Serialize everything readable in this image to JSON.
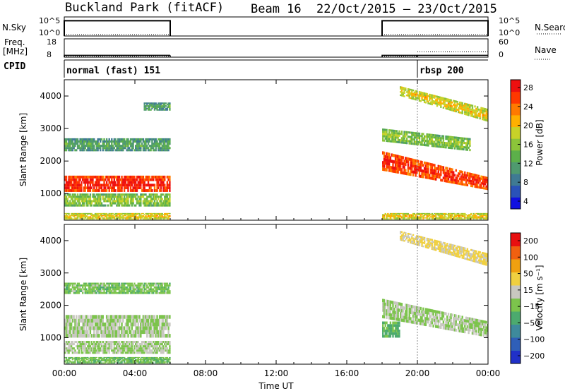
{
  "header": {
    "station": "Buckland Park (fitACF)",
    "beam": "Beam 16",
    "date_range": "22/Oct/2015 – 23/Oct/2015"
  },
  "chart_data": [
    {
      "type": "line",
      "panel": "noise",
      "left_label": "N.Sky",
      "right_label": "N.Search",
      "left_ticks": [
        "10^5",
        "10^0"
      ],
      "right_ticks": [
        "10^5",
        "10^0"
      ],
      "scale": "log",
      "segments": [
        {
          "start_h": 0.0,
          "end_h": 6.0,
          "n_sky_level": "10^4",
          "n_search_level": "10^0"
        },
        {
          "start_h": 18.0,
          "end_h": 24.0,
          "n_sky_level": "10^4",
          "n_search_level": "10^0"
        }
      ]
    },
    {
      "type": "line",
      "panel": "frequency",
      "left_label_lines": [
        "Freq.",
        "[MHz]"
      ],
      "right_label": "Nave",
      "left_ticks": [
        "18",
        "8"
      ],
      "right_ticks": [
        "60",
        "0"
      ],
      "segments": [
        {
          "start_h": 0.0,
          "end_h": 6.0,
          "freq_mhz": 9,
          "nave": 0
        },
        {
          "start_h": 18.0,
          "end_h": 20.0,
          "freq_mhz": 9,
          "nave": 0
        },
        {
          "start_h": 20.0,
          "end_h": 24.0,
          "freq_mhz": 9,
          "nave": 15
        }
      ]
    },
    {
      "type": "table",
      "panel": "cpid",
      "label": "CPID",
      "modes": [
        {
          "name": "normal (fast) 151",
          "start_h": 0.0
        },
        {
          "name": "rbsp 200",
          "start_h": 20.0
        }
      ]
    },
    {
      "type": "heatmap",
      "panel": "power",
      "ylabel": "Slant Range [km]",
      "xlabel": "",
      "ylim": [
        180,
        4500
      ],
      "yticks": [
        1000,
        2000,
        3000,
        4000
      ],
      "xlim_h": [
        0,
        24
      ],
      "colorbar": {
        "label": "Power [dB]",
        "range": [
          0,
          30
        ],
        "ticks": [
          "28",
          "24",
          "20",
          "16",
          "12",
          "8",
          "4"
        ],
        "colors": [
          "#1010e0",
          "#2a52b8",
          "#3f7a93",
          "#4f9a6f",
          "#5cb04a",
          "#8cc43a",
          "#c8d228",
          "#ffb000",
          "#ff7a00",
          "#ff3800",
          "#ee1010"
        ]
      },
      "echo_bands": [
        {
          "start_h": 0.0,
          "end_h": 6.0,
          "range_km": [
            1050,
            1550
          ],
          "power_db": 25
        },
        {
          "start_h": 0.0,
          "end_h": 6.0,
          "range_km": [
            600,
            1000
          ],
          "power_db": 12
        },
        {
          "start_h": 0.0,
          "end_h": 6.0,
          "range_km": [
            200,
            400
          ],
          "power_db": 16
        },
        {
          "start_h": 0.0,
          "end_h": 6.0,
          "range_km": [
            2300,
            2700
          ],
          "power_db": 8
        },
        {
          "start_h": 4.5,
          "end_h": 6.0,
          "range_km": [
            3550,
            3800
          ],
          "power_db": 8
        },
        {
          "start_h": 18.0,
          "end_h": 24.0,
          "range_km": [
            200,
            400
          ],
          "power_db": 16
        },
        {
          "start_h": 18.0,
          "end_h": 24.0,
          "range_km_start": [
            1700,
            2300
          ],
          "range_km_end": [
            1100,
            1500
          ],
          "power_db": 24
        },
        {
          "start_h": 18.0,
          "end_h": 23.0,
          "range_km_start": [
            2600,
            3000
          ],
          "range_km_end": [
            2300,
            2700
          ],
          "power_db": 12
        },
        {
          "start_h": 19.0,
          "end_h": 24.0,
          "range_km_start": [
            4000,
            4300
          ],
          "range_km_end": [
            3200,
            3600
          ],
          "power_db": 16
        }
      ]
    },
    {
      "type": "heatmap",
      "panel": "velocity",
      "ylabel": "Slant Range [km]",
      "xlabel": "Time UT",
      "ylim": [
        180,
        4500
      ],
      "yticks": [
        1000,
        2000,
        3000,
        4000
      ],
      "xlim_h": [
        0,
        24
      ],
      "x_tick_labels": [
        "00:00",
        "04:00",
        "08:00",
        "12:00",
        "16:00",
        "20:00",
        "00:00"
      ],
      "colorbar": {
        "label": "Velocity [m s⁻¹]",
        "range": [
          -250,
          250
        ],
        "ticks": [
          "200",
          "100",
          "50",
          "15",
          "−15",
          "−50",
          "−100",
          "−200"
        ],
        "colors": [
          "#2030c8",
          "#2f5fb8",
          "#3e8a9c",
          "#4caa6e",
          "#7cc44c",
          "#c8c8c0",
          "#f0d040",
          "#f0a010",
          "#f06010",
          "#e81010"
        ]
      },
      "echo_bands": [
        {
          "start_h": 0.0,
          "end_h": 6.0,
          "range_km": [
            1000,
            1700
          ],
          "velocity": 0
        },
        {
          "start_h": 0.0,
          "end_h": 6.0,
          "range_km": [
            500,
            900
          ],
          "velocity": 0
        },
        {
          "start_h": 0.0,
          "end_h": 6.0,
          "range_km": [
            200,
            400
          ],
          "velocity": -40
        },
        {
          "start_h": 0.0,
          "end_h": 6.0,
          "range_km": [
            2350,
            2700
          ],
          "velocity": -30
        },
        {
          "start_h": 18.0,
          "end_h": 24.0,
          "range_km_start": [
            1600,
            2200
          ],
          "range_km_end": [
            1000,
            1500
          ],
          "velocity": 0
        },
        {
          "start_h": 18.0,
          "end_h": 19.0,
          "range_km": [
            1000,
            1500
          ],
          "velocity": -60
        },
        {
          "start_h": 19.0,
          "end_h": 24.0,
          "range_km_start": [
            4000,
            4300
          ],
          "range_km_end": [
            3200,
            3600
          ],
          "velocity": 60
        }
      ]
    }
  ]
}
